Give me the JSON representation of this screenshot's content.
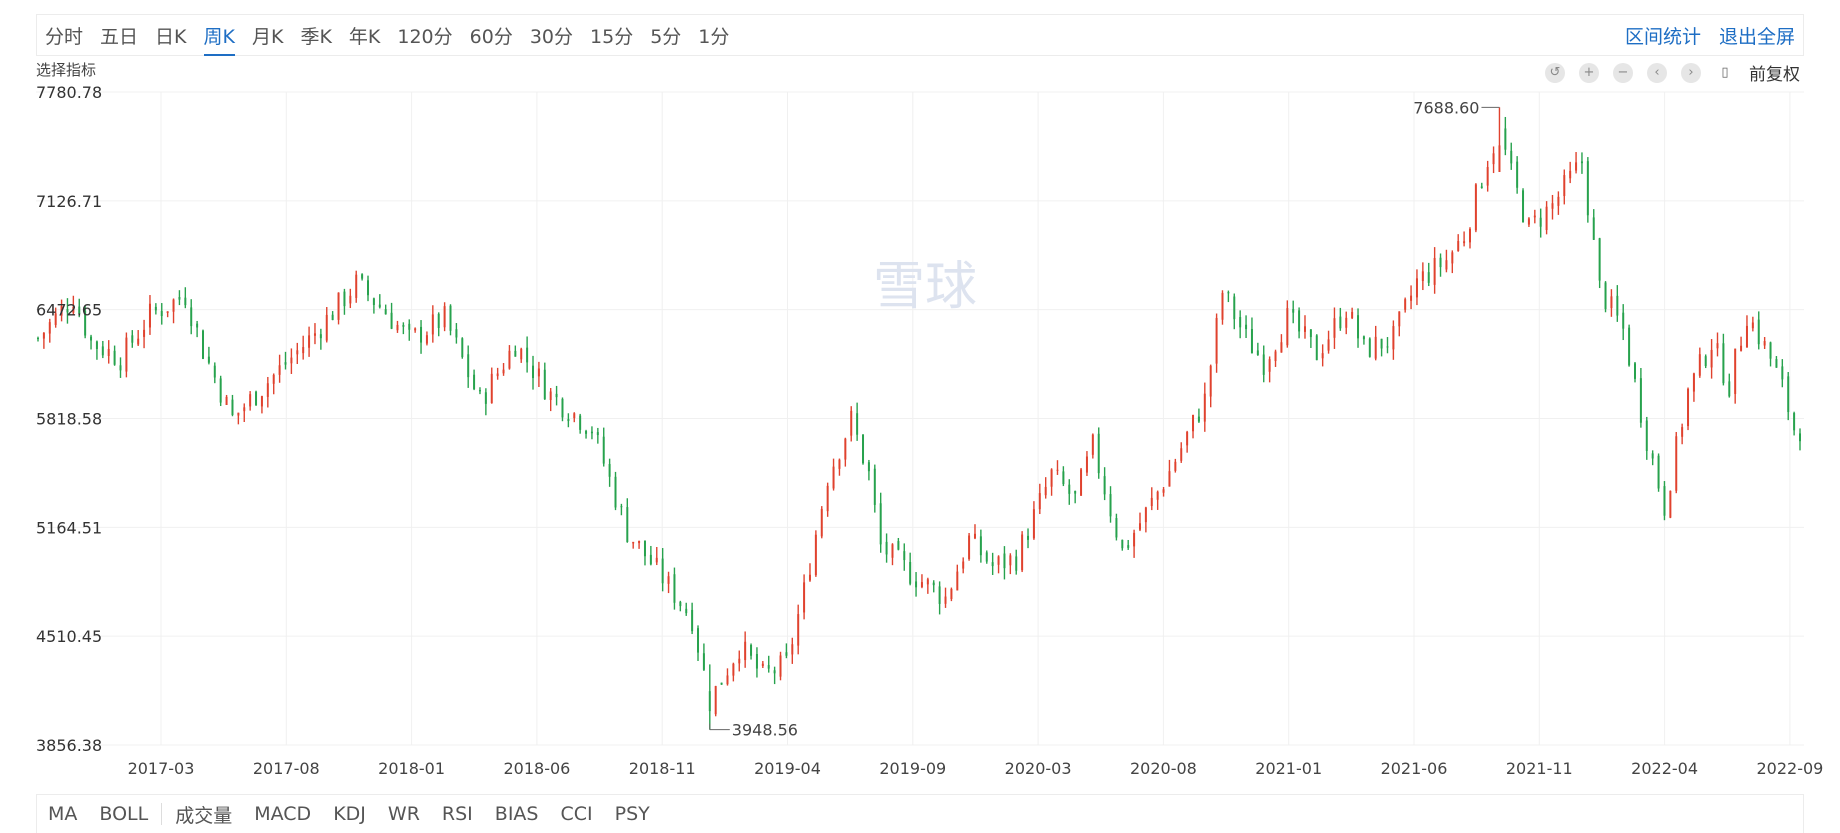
{
  "tabs": [
    "分时",
    "五日",
    "日K",
    "周K",
    "月K",
    "季K",
    "年K",
    "120分",
    "60分",
    "30分",
    "15分",
    "5分",
    "1分"
  ],
  "active_tab": "周K",
  "top_links": {
    "stats": "区间统计",
    "exit_fullscreen": "退出全屏"
  },
  "indicator_select_label": "选择指标",
  "adjust_label": "前复权",
  "watermark": "雪球",
  "toolbar_icons": [
    "undo-icon",
    "zoom-in-icon",
    "zoom-out-icon",
    "chevron-left-icon",
    "chevron-right-icon",
    "candle-icon"
  ],
  "main_indicators": [
    "MA",
    "BOLL"
  ],
  "sub_indicators": [
    "成交量",
    "MACD",
    "KDJ",
    "WR",
    "RSI",
    "BIAS",
    "CCI",
    "PSY"
  ],
  "colors": {
    "up": "#e0422e",
    "down": "#27a24d",
    "accent": "#1e6ec4",
    "grid": "#f0f0f0"
  },
  "chart_data": {
    "type": "candlestick",
    "interval": "weekly",
    "y_ticks": [
      7780.78,
      7126.71,
      6472.65,
      5818.58,
      5164.51,
      4510.45,
      3856.38
    ],
    "ylim": [
      3856.38,
      7780.78
    ],
    "x_ticks": [
      "2017-03",
      "2017-08",
      "2018-01",
      "2018-06",
      "2018-11",
      "2019-04",
      "2019-09",
      "2020-03",
      "2020-08",
      "2021-01",
      "2021-06",
      "2021-11",
      "2022-04",
      "2022-09"
    ],
    "grid": true,
    "max_label": 7688.6,
    "min_label": 3948.56,
    "close_path": [
      [
        0,
        6300
      ],
      [
        6,
        6550
      ],
      [
        9,
        6280
      ],
      [
        14,
        6180
      ],
      [
        19,
        6440
      ],
      [
        25,
        6560
      ],
      [
        28,
        6230
      ],
      [
        33,
        5820
      ],
      [
        39,
        6040
      ],
      [
        47,
        6330
      ],
      [
        54,
        6630
      ],
      [
        59,
        6460
      ],
      [
        63,
        6290
      ],
      [
        69,
        6420
      ],
      [
        75,
        5920
      ],
      [
        81,
        6270
      ],
      [
        87,
        5960
      ],
      [
        94,
        5760
      ],
      [
        100,
        5140
      ],
      [
        106,
        4860
      ],
      [
        111,
        4620
      ],
      [
        114,
        4120
      ],
      [
        119,
        4450
      ],
      [
        123,
        4270
      ],
      [
        127,
        4340
      ],
      [
        130,
        4780
      ],
      [
        134,
        5470
      ],
      [
        138,
        5810
      ],
      [
        141,
        5480
      ],
      [
        143,
        5050
      ],
      [
        148,
        4890
      ],
      [
        154,
        4740
      ],
      [
        158,
        5090
      ],
      [
        162,
        4930
      ],
      [
        166,
        4980
      ],
      [
        172,
        5480
      ],
      [
        176,
        5330
      ],
      [
        179,
        5650
      ],
      [
        184,
        5020
      ],
      [
        188,
        5250
      ],
      [
        192,
        5500
      ],
      [
        198,
        5930
      ],
      [
        201,
        6580
      ],
      [
        205,
        6300
      ],
      [
        208,
        6160
      ],
      [
        212,
        6420
      ],
      [
        217,
        6210
      ],
      [
        222,
        6480
      ],
      [
        225,
        6230
      ],
      [
        230,
        6300
      ],
      [
        234,
        6640
      ],
      [
        239,
        6770
      ],
      [
        242,
        6920
      ],
      [
        246,
        7380
      ],
      [
        248,
        7540
      ],
      [
        250,
        7280
      ],
      [
        253,
        6960
      ],
      [
        257,
        7100
      ],
      [
        260,
        7260
      ],
      [
        262,
        7360
      ],
      [
        265,
        6600
      ],
      [
        269,
        6350
      ],
      [
        273,
        5700
      ],
      [
        276,
        5290
      ],
      [
        280,
        5980
      ],
      [
        284,
        6280
      ],
      [
        287,
        6020
      ],
      [
        290,
        6450
      ],
      [
        294,
        6180
      ],
      [
        296,
        6000
      ],
      [
        298,
        5760
      ]
    ]
  }
}
